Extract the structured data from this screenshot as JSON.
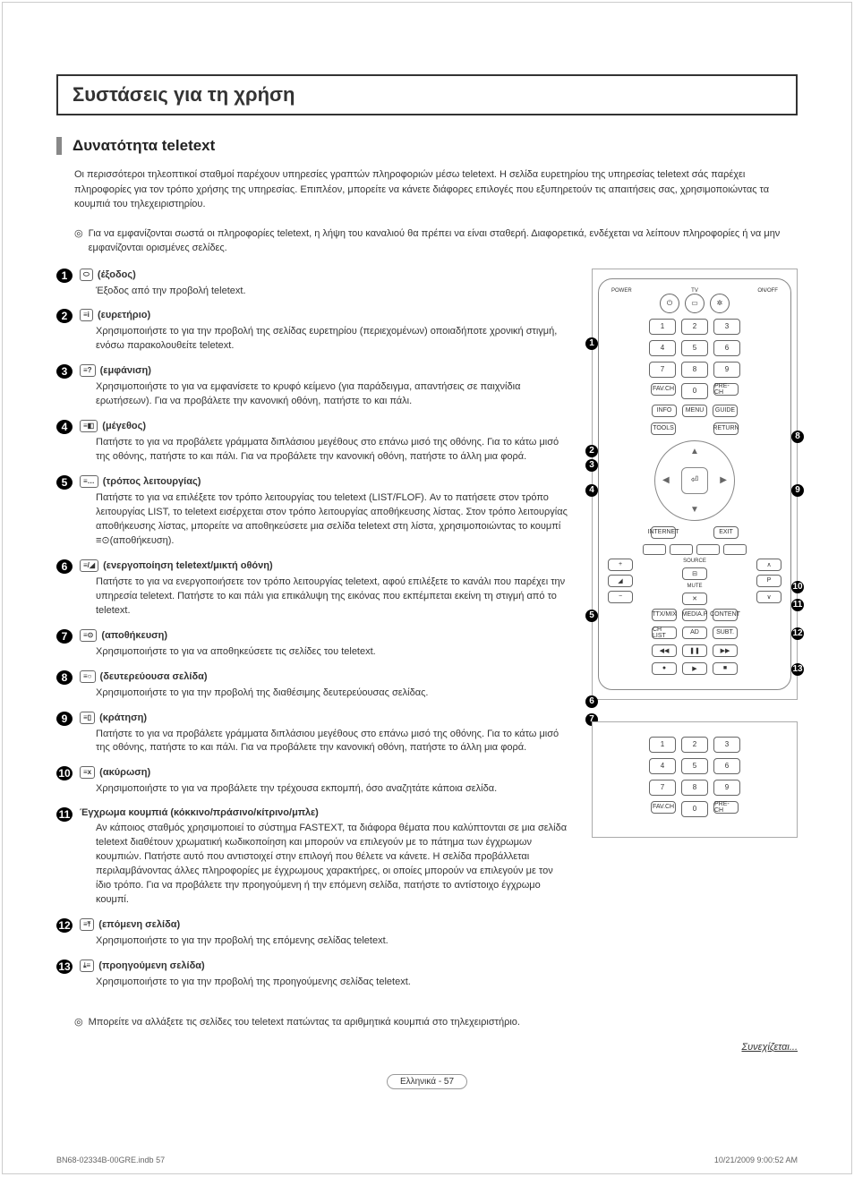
{
  "section_title": "Συστάσεις για τη χρήση",
  "subsection_title": "Δυνατότητα teletext",
  "intro": "Οι περισσότεροι τηλεοπτικοί σταθμοί παρέχουν υπηρεσίες γραπτών πληροφοριών μέσω teletext. Η σελίδα ευρετηρίου της υπηρεσίας teletext σάς παρέχει πληροφορίες για τον τρόπο χρήσης της υπηρεσίας. Επιπλέον, μπορείτε να κάνετε διάφορες επιλογές που εξυπηρετούν τις απαιτήσεις σας, χρησιμοποιώντας τα κουμπιά του τηλεχειριστηρίου.",
  "note1": "Για να εμφανίζονται σωστά οι πληροφορίες teletext, η λήψη του καναλιού θα πρέπει να είναι σταθερή. Διαφορετικά, ενδέχεται να λείπουν πληροφορίες ή να μην εμφανίζονται ορισμένες σελίδες.",
  "items": [
    {
      "num": "1",
      "icon": "⬭",
      "title": "(έξοδος)",
      "desc": "Έξοδος από την προβολή teletext."
    },
    {
      "num": "2",
      "icon": "≡i",
      "title": "(ευρετήριο)",
      "desc": "Χρησιμοποιήστε το για την προβολή της σελίδας ευρετηρίου (περιεχομένων) οποιαδήποτε χρονική στιγμή, ενόσω παρακολουθείτε teletext."
    },
    {
      "num": "3",
      "icon": "≡?",
      "title": "(εμφάνιση)",
      "desc": "Χρησιμοποιήστε το για να εμφανίσετε το κρυφό κείμενο (για παράδειγμα, απαντήσεις σε παιχνίδια ερωτήσεων). Για να προβάλετε την κανονική οθόνη, πατήστε το και πάλι."
    },
    {
      "num": "4",
      "icon": "≡◧",
      "title": "(μέγεθος)",
      "desc": "Πατήστε το για να προβάλετε γράμματα διπλάσιου μεγέθους στο επάνω μισό της οθόνης. Για το κάτω μισό της οθόνης, πατήστε το και πάλι. Για να προβάλετε την κανονική οθόνη, πατήστε το άλλη μια φορά."
    },
    {
      "num": "5",
      "icon": "≡…",
      "title": "(τρόπος λειτουργίας)",
      "desc": "Πατήστε το για να επιλέξετε τον τρόπο λειτουργίας του teletext (LIST/FLOF). Αν το πατήσετε στον τρόπο λειτουργίας LIST, το teletext εισέρχεται στον τρόπο λειτουργίας αποθήκευσης λίστας. Στον τρόπο λειτουργίας αποθήκευσης λίστας, μπορείτε να αποθηκεύσετε μια σελίδα teletext στη λίστα, χρησιμοποιώντας το κουμπί ≡⊙(αποθήκευση)."
    },
    {
      "num": "6",
      "icon": "≡/◢",
      "title": "(ενεργοποίηση teletext/μικτή οθόνη)",
      "desc": "Πατήστε το για να ενεργοποιήσετε τον τρόπο λειτουργίας teletext, αφού επιλέξετε το κανάλι που παρέχει την υπηρεσία teletext. Πατήστε το και πάλι για επικάλυψη της εικόνας που εκπέμπεται εκείνη τη στιγμή από το teletext."
    },
    {
      "num": "7",
      "icon": "≡⊙",
      "title": "(αποθήκευση)",
      "desc": "Χρησιμοποιήστε το για να αποθηκεύσετε τις σελίδες του teletext."
    },
    {
      "num": "8",
      "icon": "≡○",
      "title": "(δευτερεύουσα σελίδα)",
      "desc": "Χρησιμοποιήστε το για την προβολή της διαθέσιμης δευτερεύουσας σελίδας."
    },
    {
      "num": "9",
      "icon": "≡▯",
      "title": "(κράτηση)",
      "desc": "Πατήστε το για να προβάλετε γράμματα διπλάσιου μεγέθους στο επάνω μισό της οθόνης. Για το κάτω μισό της οθόνης, πατήστε το και πάλι. Για να προβάλετε την κανονική οθόνη, πατήστε το άλλη μια φορά."
    },
    {
      "num": "10",
      "icon": "≡x",
      "title": "(ακύρωση)",
      "desc": "Χρησιμοποιήστε το για να προβάλετε την τρέχουσα εκπομπή, όσο αναζητάτε κάποια σελίδα."
    },
    {
      "num": "11",
      "icon": "",
      "title": "Έγχρωμα κουμπιά (κόκκινο/πράσινο/κίτρινο/μπλε)",
      "desc": "Αν κάποιος σταθμός χρησιμοποιεί το σύστημα FASTEXT, τα διάφορα θέματα που καλύπτονται σε μια σελίδα teletext διαθέτουν χρωματική κωδικοποίηση και μπορούν να επιλεγούν με το πάτημα των έγχρωμων κουμπιών. Πατήστε αυτό που αντιστοιχεί στην επιλογή που θέλετε να κάνετε. Η σελίδα προβάλλεται περιλαμβάνοντας άλλες πληροφορίες με έγχρωμους χαρακτήρες, οι οποίες μπορούν να επιλεγούν με τον ίδιο τρόπο. Για να προβάλετε την προηγούμενη ή την επόμενη σελίδα, πατήστε το αντίστοιχο έγχρωμο κουμπί."
    },
    {
      "num": "12",
      "icon": "≡⤒",
      "title": "(επόμενη σελίδα)",
      "desc": "Χρησιμοποιήστε το για την προβολή της επόμενης σελίδας teletext."
    },
    {
      "num": "13",
      "icon": "⤓≡",
      "title": "(προηγούμενη σελίδα)",
      "desc": "Χρησιμοποιήστε το για την προβολή της προηγούμενης σελίδας teletext."
    }
  ],
  "note2": "Μπορείτε να αλλάξετε τις σελίδες του teletext πατώντας τα αριθμητικά κουμπιά στο τηλεχειριστήριο.",
  "continues": "Συνεχίζεται...",
  "page_footer": "Ελληνικά - 57",
  "doc_file": "BN68-02334B-00GRE.indb   57",
  "doc_time": "10/21/2009   9:00:52 AM",
  "remote": {
    "labels": {
      "power": "POWER",
      "tv": "TV",
      "onoff": "ON/OFF"
    },
    "numpad": [
      "1",
      "2",
      "3",
      "4",
      "5",
      "6",
      "7",
      "8",
      "9"
    ],
    "fav": "FAV.CH",
    "zero": "0",
    "prech": "PRE-CH",
    "info": "INFO",
    "menu": "MENU",
    "guide": "GUIDE",
    "tools": "TOOLS",
    "return": "RETURN",
    "internet": "INTERNET",
    "exit": "EXIT",
    "source": "SOURCE",
    "mute": "MUTE",
    "p": "P",
    "ttx": "TTX/MIX",
    "media": "MEDIA.P",
    "content": "CONTENT",
    "chlist": "CH LIST",
    "ad": "AD",
    "subt": "SUBT."
  },
  "colors": {
    "text": "#333333",
    "border": "#888888",
    "callout_bg": "#000000"
  }
}
